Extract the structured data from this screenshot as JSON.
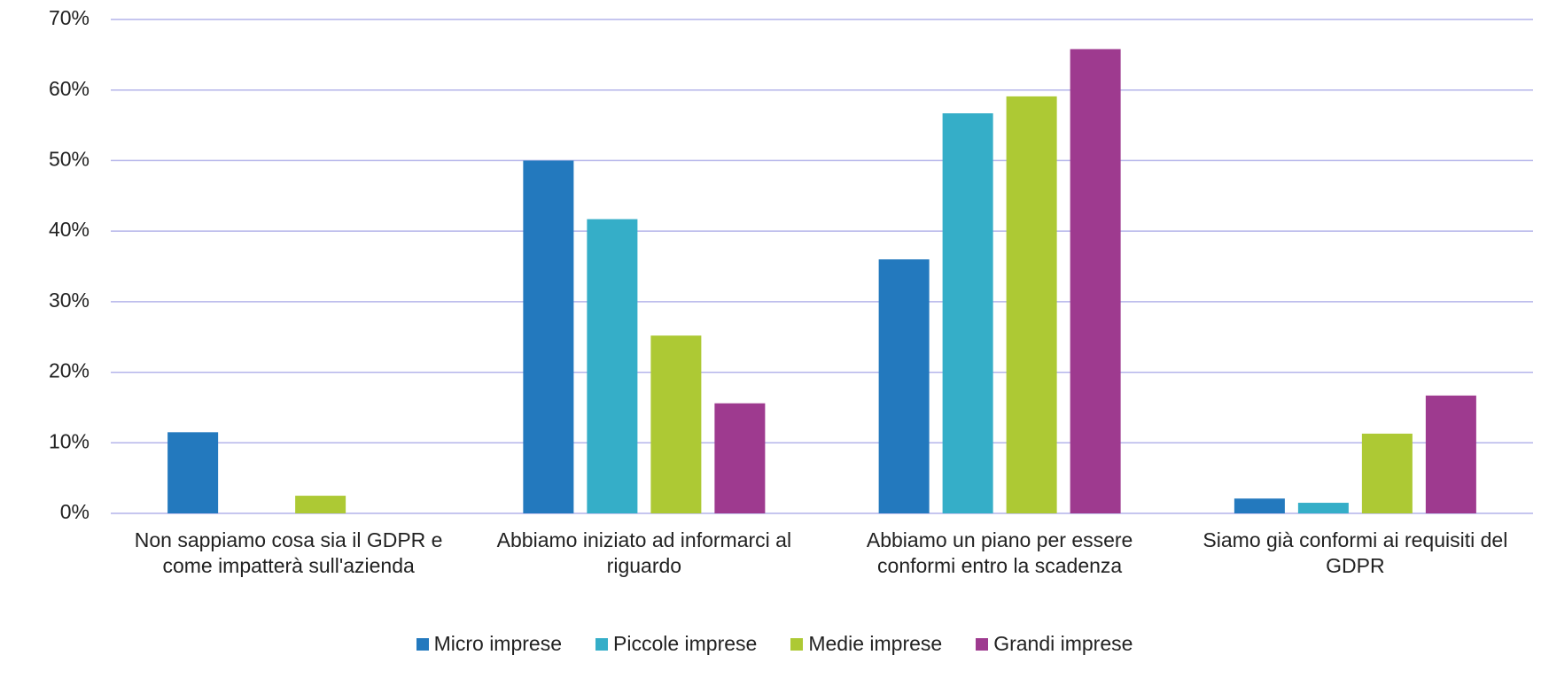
{
  "chart_data": {
    "type": "bar",
    "categories": [
      "Non sappiamo cosa sia il GDPR e come impatterà sull'azienda",
      "Abbiamo iniziato ad informarci al riguardo",
      "Abbiamo un piano per essere conformi entro la scadenza",
      "Siamo già conformi ai requisiti del GDPR"
    ],
    "series": [
      {
        "name": "Micro imprese",
        "color": "#2379be",
        "values": [
          11.5,
          50,
          36,
          2.1
        ]
      },
      {
        "name": "Piccole imprese",
        "color": "#35aec8",
        "values": [
          0,
          41.7,
          56.7,
          1.5
        ]
      },
      {
        "name": "Medie imprese",
        "color": "#adc934",
        "values": [
          2.5,
          25.2,
          59.1,
          11.3
        ]
      },
      {
        "name": "Grandi imprese",
        "color": "#9e3a8f",
        "values": [
          0,
          15.6,
          65.8,
          16.7
        ]
      }
    ],
    "ylim": [
      0,
      70
    ],
    "yticks": [
      {
        "value": 0,
        "label": "0%"
      },
      {
        "value": 10,
        "label": "10%"
      },
      {
        "value": 20,
        "label": "20%"
      },
      {
        "value": 30,
        "label": "30%"
      },
      {
        "value": 40,
        "label": "40%"
      },
      {
        "value": 50,
        "label": "50%"
      },
      {
        "value": 60,
        "label": "60%"
      },
      {
        "value": 70,
        "label": "70%"
      }
    ],
    "grid": true
  }
}
